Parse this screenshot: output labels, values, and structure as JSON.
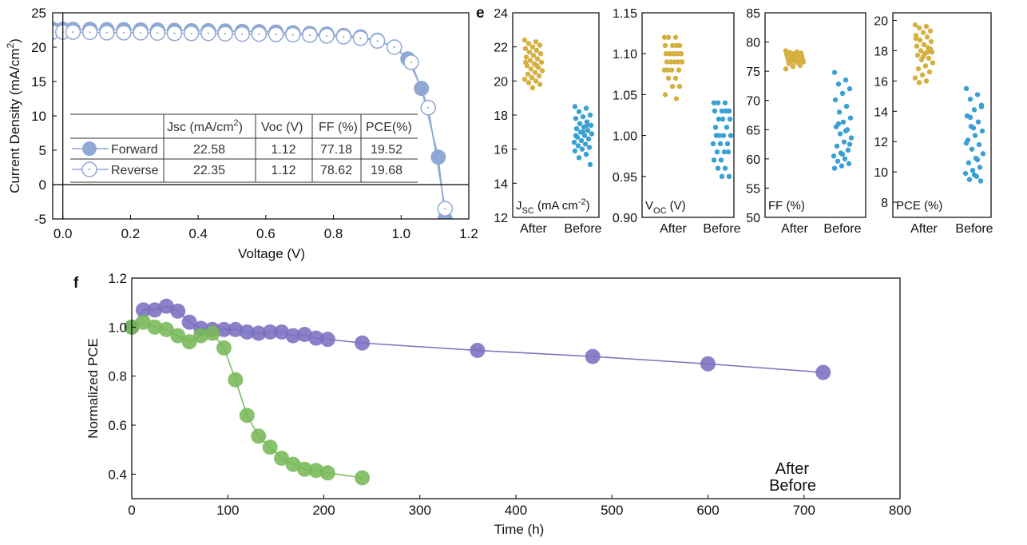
{
  "colors": {
    "forward": "#8fa8d4",
    "reverse": "#8fa8d4",
    "after_scatter": "#d4b040",
    "before_scatter": "#3aa0d4",
    "after_stab": "#7a70c0",
    "before_stab": "#78b858"
  },
  "panel_labels": {
    "e": "e",
    "f": "f"
  },
  "chart_data": [
    {
      "id": "jv",
      "type": "line",
      "title": "",
      "xlabel": "Voltage (V)",
      "ylabel": "Current Density (mA/cm",
      "ylabel_sup": "2",
      "ylabel_close": ")",
      "xlim": [
        -0.03,
        1.2
      ],
      "ylim": [
        -5,
        25
      ],
      "xticks": [
        0.0,
        0.2,
        0.4,
        0.6,
        0.8,
        1.0,
        1.2
      ],
      "xtick_labels": [
        "0.0",
        "0.2",
        "0.4",
        "0.6",
        "0.8",
        "1.0",
        "1.2"
      ],
      "yticks": [
        -5,
        0,
        5,
        10,
        15,
        20,
        25
      ],
      "ytick_labels": [
        "-5",
        "0",
        "5",
        "10",
        "15",
        "20",
        "25"
      ],
      "series": [
        {
          "name": "Forward",
          "marker": "filled-circle",
          "x": [
            -0.03,
            0.0,
            0.03,
            0.08,
            0.13,
            0.18,
            0.23,
            0.28,
            0.33,
            0.38,
            0.43,
            0.48,
            0.53,
            0.58,
            0.63,
            0.68,
            0.73,
            0.78,
            0.83,
            0.88,
            0.93,
            0.98,
            1.02,
            1.06,
            1.11,
            1.13
          ],
          "y": [
            22.6,
            22.6,
            22.6,
            22.6,
            22.55,
            22.55,
            22.5,
            22.5,
            22.45,
            22.4,
            22.4,
            22.35,
            22.3,
            22.25,
            22.2,
            22.1,
            22.0,
            21.9,
            21.7,
            21.5,
            21.0,
            20.0,
            18.3,
            14.0,
            4.0,
            -5.0
          ]
        },
        {
          "name": "Reverse",
          "marker": "open-circle",
          "x": [
            -0.03,
            0.0,
            0.03,
            0.08,
            0.13,
            0.18,
            0.23,
            0.28,
            0.33,
            0.38,
            0.43,
            0.48,
            0.53,
            0.58,
            0.63,
            0.68,
            0.73,
            0.78,
            0.83,
            0.88,
            0.93,
            0.98,
            1.03,
            1.08,
            1.13
          ],
          "y": [
            22.2,
            22.2,
            22.2,
            22.15,
            22.1,
            22.1,
            22.1,
            22.05,
            22.0,
            22.0,
            22.0,
            21.95,
            21.9,
            21.9,
            21.85,
            21.8,
            21.75,
            21.65,
            21.5,
            21.3,
            20.9,
            20.0,
            17.8,
            11.2,
            -3.5
          ]
        }
      ],
      "table": {
        "headers": [
          "",
          "Jsc (mA/cm",
          "Voc (V)",
          "FF (%)",
          "PCE(%)"
        ],
        "jsc_sup": "2",
        "jsc_close": ")",
        "rows": [
          {
            "label": "Forward",
            "jsc": "22.58",
            "voc": "1.12",
            "ff": "77.18",
            "pce": "19.52"
          },
          {
            "label": "Reverse",
            "jsc": "22.35",
            "voc": "1.12",
            "ff": "78.62",
            "pce": "19.68"
          }
        ]
      }
    },
    {
      "id": "jsc",
      "type": "scatter",
      "label_main": "J",
      "label_sub": "SC",
      "label_rest": " (mA cm",
      "label_sup": "-2",
      "label_close": ")",
      "categories": [
        "After",
        "Before"
      ],
      "ylim": [
        12,
        24
      ],
      "yticks": [
        12,
        14,
        16,
        18,
        20,
        22,
        24
      ],
      "ytick_labels": [
        "12",
        "14",
        "16",
        "18",
        "20",
        "22",
        "24"
      ],
      "after": [
        22.4,
        22.3,
        22.2,
        22.1,
        22.0,
        21.9,
        21.8,
        21.7,
        21.6,
        21.5,
        21.4,
        21.3,
        21.2,
        21.1,
        21.0,
        20.9,
        20.8,
        20.7,
        20.6,
        20.5,
        20.4,
        20.3,
        20.2,
        20.1,
        20.0,
        19.9,
        19.8,
        19.6,
        21.1,
        20.9
      ],
      "before": [
        18.5,
        18.4,
        18.2,
        18.0,
        17.9,
        17.8,
        17.6,
        17.5,
        17.4,
        17.3,
        17.2,
        17.1,
        17.0,
        16.9,
        16.8,
        16.7,
        16.6,
        16.5,
        16.4,
        16.3,
        16.2,
        16.1,
        16.0,
        15.9,
        15.7,
        15.5,
        15.1,
        17.0,
        16.8,
        17.4
      ]
    },
    {
      "id": "voc",
      "type": "scatter",
      "label_main": "V",
      "label_sub": "OC",
      "label_rest": " (V)",
      "categories": [
        "After",
        "Before"
      ],
      "ylim": [
        0.9,
        1.15
      ],
      "yticks": [
        0.9,
        0.95,
        1.0,
        1.05,
        1.1,
        1.15
      ],
      "ytick_labels": [
        "0.90",
        "0.95",
        "1.00",
        "1.05",
        "1.10",
        "1.15"
      ],
      "after": [
        1.12,
        1.12,
        1.12,
        1.11,
        1.11,
        1.11,
        1.11,
        1.1,
        1.1,
        1.1,
        1.1,
        1.1,
        1.1,
        1.1,
        1.1,
        1.09,
        1.09,
        1.09,
        1.09,
        1.09,
        1.08,
        1.08,
        1.08,
        1.08,
        1.07,
        1.07,
        1.06,
        1.06,
        1.05,
        1.045
      ],
      "before": [
        1.04,
        1.04,
        1.04,
        1.03,
        1.03,
        1.03,
        1.03,
        1.02,
        1.02,
        1.02,
        1.01,
        1.01,
        1.0,
        1.0,
        1.0,
        1.0,
        0.99,
        0.99,
        0.99,
        0.98,
        0.98,
        0.98,
        0.97,
        0.97,
        0.96,
        0.96,
        0.95,
        0.95
      ]
    },
    {
      "id": "ff",
      "type": "scatter",
      "label_main": "FF (%)",
      "categories": [
        "After",
        "Before"
      ],
      "ylim": [
        50,
        85
      ],
      "yticks": [
        50,
        55,
        60,
        65,
        70,
        75,
        80,
        85
      ],
      "ytick_labels": [
        "50",
        "55",
        "60",
        "65",
        "70",
        "75",
        "80",
        "85"
      ],
      "after": [
        78.5,
        78.3,
        78.2,
        78.1,
        78.0,
        77.9,
        77.8,
        77.7,
        77.6,
        77.5,
        77.4,
        77.3,
        77.2,
        77.1,
        77.0,
        76.9,
        76.8,
        76.7,
        76.6,
        76.5,
        76.3,
        76.0,
        75.8,
        75.4,
        77.5,
        77.8,
        77.2,
        78.0
      ],
      "before": [
        74.8,
        73.5,
        72.8,
        72.0,
        71.2,
        70.1,
        69.0,
        68.0,
        67.0,
        66.3,
        65.5,
        65.0,
        64.3,
        63.6,
        62.9,
        62.2,
        61.5,
        61.0,
        60.5,
        60.0,
        59.6,
        59.2,
        58.8,
        58.4,
        64.8,
        66.0,
        62.5,
        60.8
      ]
    },
    {
      "id": "pce",
      "type": "scatter",
      "label_main": "PCE (%)",
      "categories": [
        "After",
        "Before"
      ],
      "ylim": [
        7,
        20.5
      ],
      "yticks": [
        8,
        10,
        12,
        14,
        16,
        18,
        20
      ],
      "ytick_labels": [
        "8",
        "10",
        "12",
        "14",
        "16",
        "18",
        "20"
      ],
      "after": [
        19.7,
        19.6,
        19.5,
        19.3,
        19.2,
        19.0,
        18.9,
        18.7,
        18.6,
        18.4,
        18.3,
        18.2,
        18.0,
        17.9,
        17.8,
        17.7,
        17.5,
        17.4,
        17.2,
        17.0,
        16.8,
        16.6,
        16.4,
        16.2,
        16.0,
        15.9,
        18.1,
        17.6,
        18.8,
        17.9
      ],
      "before": [
        15.5,
        15.1,
        14.8,
        14.4,
        14.1,
        13.7,
        13.3,
        13.0,
        12.7,
        12.4,
        12.1,
        11.8,
        11.5,
        11.2,
        10.9,
        10.6,
        10.3,
        10.1,
        9.9,
        9.7,
        9.5,
        9.4,
        12.9,
        11.9,
        10.8,
        13.6,
        14.3,
        9.8
      ]
    },
    {
      "id": "stability",
      "type": "line",
      "xlabel": "Time (h)",
      "ylabel": "Normalized PCE",
      "xlim": [
        0,
        800
      ],
      "ylim": [
        0.3,
        1.2
      ],
      "xticks": [
        0,
        100,
        200,
        300,
        400,
        500,
        600,
        700,
        800
      ],
      "xtick_labels": [
        "0",
        "100",
        "200",
        "300",
        "400",
        "500",
        "600",
        "700",
        "800"
      ],
      "yticks": [
        0.4,
        0.6,
        0.8,
        1.0,
        1.2
      ],
      "ytick_labels": [
        "0.4",
        "0.6",
        "0.8",
        "1.0",
        "1.2"
      ],
      "series": [
        {
          "name": "After",
          "x": [
            0,
            12,
            24,
            36,
            48,
            60,
            72,
            84,
            96,
            108,
            120,
            132,
            144,
            156,
            168,
            180,
            192,
            204,
            240,
            360,
            480,
            600,
            720
          ],
          "y": [
            1.0,
            1.07,
            1.07,
            1.085,
            1.065,
            1.02,
            0.995,
            0.99,
            0.99,
            0.99,
            0.98,
            0.975,
            0.98,
            0.98,
            0.965,
            0.97,
            0.955,
            0.95,
            0.935,
            0.905,
            0.88,
            0.85,
            0.815
          ]
        },
        {
          "name": "Before",
          "x": [
            0,
            12,
            24,
            36,
            48,
            60,
            72,
            84,
            96,
            108,
            120,
            132,
            144,
            156,
            168,
            180,
            192,
            204,
            240
          ],
          "y": [
            1.0,
            1.02,
            1.0,
            0.99,
            0.965,
            0.94,
            0.965,
            0.975,
            0.915,
            0.785,
            0.64,
            0.555,
            0.51,
            0.465,
            0.44,
            0.42,
            0.415,
            0.405,
            0.385
          ]
        }
      ]
    }
  ]
}
